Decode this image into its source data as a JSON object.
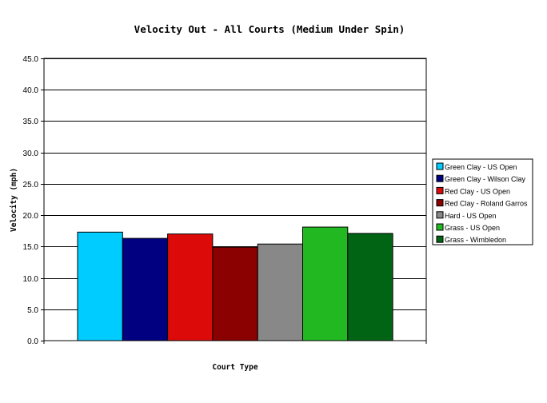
{
  "chart_data": {
    "type": "bar",
    "title": "Velocity Out - All Courts (Medium Under Spin)",
    "xlabel": "Court Type",
    "ylabel": "Velocity (mph)",
    "ylim": [
      0,
      45
    ],
    "ytick_step": 5,
    "ytick_labels": [
      "0.0",
      "5.0",
      "10.0",
      "15.0",
      "20.0",
      "25.0",
      "30.0",
      "35.0",
      "40.0",
      "45.0"
    ],
    "grid": true,
    "legend_position": "right",
    "series": [
      {
        "name": "Green Clay - US Open",
        "value": 17.3,
        "color": "#00CCFF"
      },
      {
        "name": "Green Clay - Wilson Clay",
        "value": 16.3,
        "color": "#000080"
      },
      {
        "name": "Red Clay - US Open",
        "value": 17.0,
        "color": "#DD0A0A"
      },
      {
        "name": "Red Clay - Roland Garros",
        "value": 14.9,
        "color": "#8B0000"
      },
      {
        "name": "Hard - US Open",
        "value": 15.4,
        "color": "#888888"
      },
      {
        "name": "Grass - US Open",
        "value": 18.1,
        "color": "#22B822"
      },
      {
        "name": "Grass - Wimbledon",
        "value": 17.1,
        "color": "#006414"
      }
    ]
  }
}
